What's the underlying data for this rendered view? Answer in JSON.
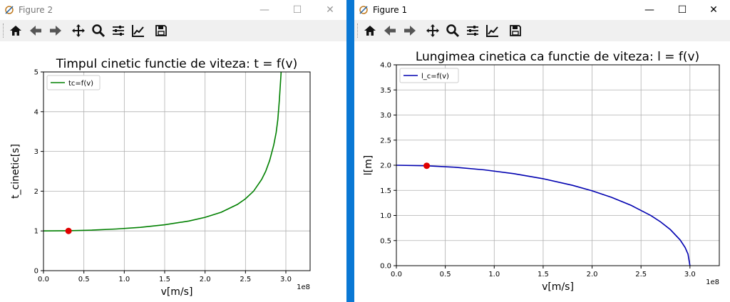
{
  "windows": [
    {
      "title": "Figure 2",
      "chart_data": {
        "type": "line",
        "title": "Timpul cinetic functie de viteza: t = f(v)",
        "xlabel": "v[m/s]",
        "ylabel": "t_cinetic[s]",
        "x_offset_label": "1e8",
        "xlim": [
          0,
          3.3
        ],
        "ylim": [
          0,
          5
        ],
        "xticks": [
          "0.0",
          "0.5",
          "1.0",
          "1.5",
          "2.0",
          "2.5",
          "3.0"
        ],
        "yticks": [
          "0",
          "1",
          "2",
          "3",
          "4",
          "5"
        ],
        "grid": true,
        "legend_position": "upper-left",
        "series": [
          {
            "name": "tc=f(v)",
            "color": "#008000",
            "x": [
              0,
              0.3,
              0.6,
              0.9,
              1.2,
              1.5,
              1.8,
              2.0,
              2.2,
              2.4,
              2.5,
              2.6,
              2.7,
              2.75,
              2.8,
              2.85,
              2.88,
              2.9,
              2.92,
              2.94,
              2.95
            ],
            "y": [
              1.0,
              1.005,
              1.02,
              1.048,
              1.089,
              1.155,
              1.25,
              1.342,
              1.47,
              1.667,
              1.809,
              2.0,
              2.294,
              2.5,
              2.774,
              3.162,
              3.476,
              3.8,
              4.3,
              4.95,
              5.4
            ]
          }
        ],
        "markers": [
          {
            "x": 0.31,
            "y": 1.0,
            "color": "#e00000"
          }
        ]
      }
    },
    {
      "title": "Figure 1",
      "chart_data": {
        "type": "line",
        "title": "Lungimea cinetica ca functie de viteza: l = f(v)",
        "xlabel": "v[m/s]",
        "ylabel": "l[m]",
        "x_offset_label": "1e8",
        "xlim": [
          0,
          3.3
        ],
        "ylim": [
          0,
          4
        ],
        "xticks": [
          "0.0",
          "0.5",
          "1.0",
          "1.5",
          "2.0",
          "2.5",
          "3.0"
        ],
        "yticks": [
          "0.0",
          "0.5",
          "1.0",
          "1.5",
          "2.0",
          "2.5",
          "3.0",
          "3.5",
          "4.0"
        ],
        "grid": true,
        "legend_position": "upper-left",
        "series": [
          {
            "name": "l_c=f(v)",
            "color": "#0000b0",
            "x": [
              0,
              0.3,
              0.6,
              0.9,
              1.2,
              1.5,
              1.8,
              2.0,
              2.2,
              2.4,
              2.6,
              2.7,
              2.8,
              2.9,
              2.95,
              2.98,
              3.0
            ],
            "y": [
              2.0,
              1.99,
              1.96,
              1.908,
              1.833,
              1.732,
              1.6,
              1.491,
              1.36,
              1.2,
              0.998,
              0.872,
              0.718,
              0.512,
              0.363,
              0.231,
              0.0
            ]
          }
        ],
        "markers": [
          {
            "x": 0.31,
            "y": 1.99,
            "color": "#e00000"
          }
        ]
      }
    }
  ]
}
